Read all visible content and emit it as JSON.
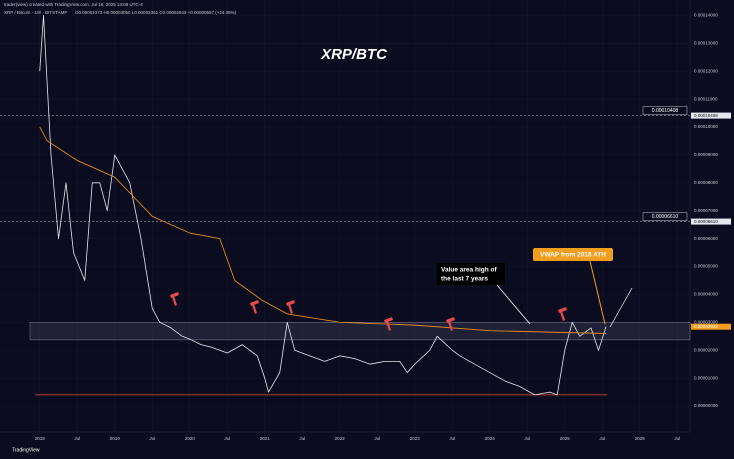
{
  "header": {
    "author": "trader(view) created with TradingView.com, Jul 18, 2025 13:08 UTC-4",
    "symbol": "XRP / Bitcoin · 1W · BITSTAMP",
    "ohlc": "O0.00002373 H0.00003050 L0.00002361 C0.00002843 +0.00000557 (+24.36%)"
  },
  "footer": "TradingView",
  "chart_data": {
    "type": "line",
    "title": "XRP/BTC",
    "xlim": [
      2017.47,
      2026.67
    ],
    "ylim": [
      -9.3e-06,
      0.0001455
    ],
    "xticks": [
      {
        "value": 2018,
        "label": "2018"
      },
      {
        "value": 2018.5,
        "label": "Jul"
      },
      {
        "value": 2019,
        "label": "2019"
      },
      {
        "value": 2019.5,
        "label": "Jul"
      },
      {
        "value": 2020,
        "label": "2020"
      },
      {
        "value": 2020.5,
        "label": "Jul"
      },
      {
        "value": 2021,
        "label": "2021"
      },
      {
        "value": 2021.5,
        "label": "Jul"
      },
      {
        "value": 2022,
        "label": "2022"
      },
      {
        "value": 2022.5,
        "label": "Jul"
      },
      {
        "value": 2023,
        "label": "2023"
      },
      {
        "value": 2023.5,
        "label": "Jul"
      },
      {
        "value": 2024,
        "label": "2024"
      },
      {
        "value": 2024.5,
        "label": "Jul"
      },
      {
        "value": 2025,
        "label": "2025"
      },
      {
        "value": 2025.5,
        "label": "Jul"
      },
      {
        "value": 2026,
        "label": "2026"
      },
      {
        "value": 2026.5,
        "label": "Jul"
      }
    ],
    "yticks": [
      {
        "value": 0,
        "label": "0.00000000"
      },
      {
        "value": 1e-05,
        "label": "0.00001000"
      },
      {
        "value": 2e-05,
        "label": "0.00002000"
      },
      {
        "value": 3e-05,
        "label": "0.00003000"
      },
      {
        "value": 4e-05,
        "label": "0.00004000"
      },
      {
        "value": 5e-05,
        "label": "0.00005000"
      },
      {
        "value": 6e-05,
        "label": "0.00006000"
      },
      {
        "value": 7e-05,
        "label": "0.00007000"
      },
      {
        "value": 8e-05,
        "label": "0.00008000"
      },
      {
        "value": 9e-05,
        "label": "0.00009000"
      },
      {
        "value": 0.0001,
        "label": "0.00010000"
      },
      {
        "value": 0.00011,
        "label": "0.00011000"
      },
      {
        "value": 0.00012,
        "label": "0.00012000"
      },
      {
        "value": 0.00013,
        "label": "0.00013000"
      },
      {
        "value": 0.00014,
        "label": "0.00014000"
      }
    ],
    "series": [
      {
        "name": "XRP / Bitcoin",
        "color": "#e8e8f0",
        "x": [
          2018.0,
          2018.05,
          2018.15,
          2018.25,
          2018.35,
          2018.45,
          2018.6,
          2018.7,
          2018.8,
          2018.9,
          2019.0,
          2019.1,
          2019.2,
          2019.35,
          2019.5,
          2019.6,
          2019.75,
          2019.9,
          2020.0,
          2020.15,
          2020.3,
          2020.5,
          2020.7,
          2020.9,
          2021.0,
          2021.05,
          2021.2,
          2021.3,
          2021.4,
          2021.6,
          2021.8,
          2022.0,
          2022.2,
          2022.4,
          2022.6,
          2022.8,
          2022.9,
          2023.0,
          2023.2,
          2023.3,
          2023.5,
          2023.6,
          2023.8,
          2024.0,
          2024.2,
          2024.4,
          2024.6,
          2024.8,
          2024.9,
          2025.0,
          2025.1,
          2025.2,
          2025.35,
          2025.45,
          2025.55
        ],
        "values": [
          0.00012,
          0.00014,
          9e-05,
          6e-05,
          8e-05,
          5.5e-05,
          4.5e-05,
          8e-05,
          8e-05,
          7e-05,
          9e-05,
          8.5e-05,
          8e-05,
          6e-05,
          3.5e-05,
          3e-05,
          2.8e-05,
          2.5e-05,
          2.4e-05,
          2.2e-05,
          2.1e-05,
          1.9e-05,
          2.2e-05,
          1.8e-05,
          1e-05,
          5e-06,
          1.2e-05,
          3e-05,
          2e-05,
          1.8e-05,
          1.6e-05,
          1.8e-05,
          1.7e-05,
          1.5e-05,
          1.6e-05,
          1.6e-05,
          1.2e-05,
          1.5e-05,
          2e-05,
          2.5e-05,
          2e-05,
          1.8e-05,
          1.5e-05,
          1.2e-05,
          9e-06,
          7e-06,
          4e-06,
          5e-06,
          4e-06,
          2e-05,
          3e-05,
          2.5e-05,
          2.8e-05,
          2e-05,
          2.843e-05
        ]
      },
      {
        "name": "VWAP",
        "color": "#e08a1e",
        "x": [
          2018.0,
          2018.1,
          2018.5,
          2019.0,
          2019.5,
          2020.0,
          2020.4,
          2020.6,
          2020.96,
          2021.3,
          2022.0,
          2023.0,
          2024.0,
          2025.55
        ],
        "values": [
          0.0001,
          9.5e-05,
          8.8e-05,
          8.2e-05,
          6.8e-05,
          6.2e-05,
          6e-05,
          4.5e-05,
          3.8e-05,
          3.3e-05,
          3e-05,
          2.9e-05,
          2.7e-05,
          2.6e-05
        ]
      }
    ],
    "levels": [
      {
        "value": 0.00010408,
        "label": "0.00010408"
      },
      {
        "value": 6.61e-05,
        "label": "0.00006610"
      }
    ],
    "last_price": {
      "value": 2.843e-05,
      "label": "0.00002843"
    },
    "value_area": [
      2.37e-05,
      3e-05
    ],
    "support": 4e-06,
    "annotations": {
      "value_area": [
        "Value area high of",
        "the last 7 years"
      ],
      "vwap": "VWAP from 2018 ATH"
    }
  }
}
